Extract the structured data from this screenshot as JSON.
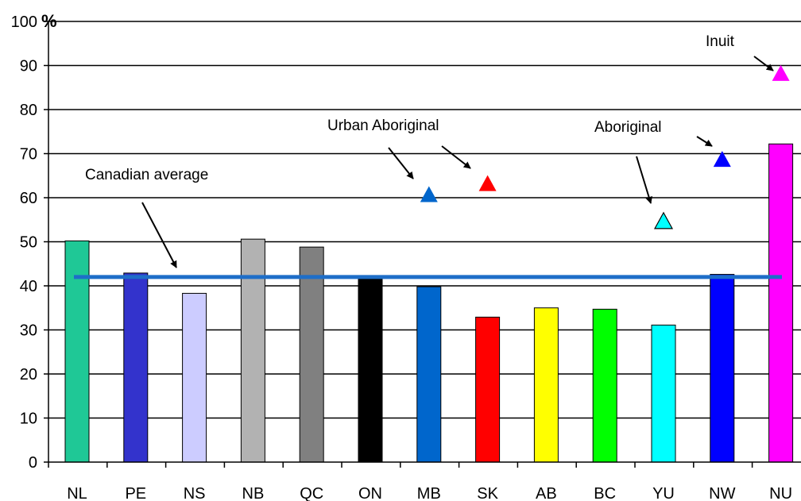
{
  "chart_data": {
    "type": "bar",
    "title": "",
    "xlabel": "",
    "ylabel": "%",
    "ylim": [
      0,
      100
    ],
    "yticks": [
      0,
      10,
      20,
      30,
      40,
      50,
      60,
      70,
      80,
      90,
      100
    ],
    "grid": true,
    "categories": [
      "NL",
      "PE",
      "NS",
      "NB",
      "QC",
      "ON",
      "MB",
      "SK",
      "AB",
      "BC",
      "YU",
      "NW",
      "NU"
    ],
    "series": [
      {
        "values": [
          50.2,
          42.9,
          38.3,
          50.6,
          48.8,
          42.1,
          39.8,
          32.9,
          35.0,
          34.7,
          31.1,
          42.6,
          72.2
        ],
        "colors": [
          "#1fc896",
          "#3333cc",
          "#ccccff",
          "#b2b2b2",
          "#808080",
          "#000000",
          "#0066cc",
          "#ff0000",
          "#ffff00",
          "#00ff00",
          "#00ffff",
          "#0000ff",
          "#ff00ff"
        ]
      }
    ],
    "reference_line": {
      "label": "Canadian average",
      "value": 42,
      "color": "#1e6ec8"
    },
    "markers": [
      {
        "category": "MB",
        "value": 60.8,
        "color": "#0066cc"
      },
      {
        "category": "SK",
        "value": 63.3,
        "color": "#ff0000"
      },
      {
        "category": "YU",
        "value": 54.8,
        "color": "#00ffff"
      },
      {
        "category": "NW",
        "value": 68.8,
        "color": "#0000ff"
      },
      {
        "category": "NU",
        "value": 88.3,
        "color": "#ff00ff"
      }
    ],
    "annotations": [
      {
        "text": "Canadian average"
      },
      {
        "text": "Urban Aboriginal"
      },
      {
        "text": "Aboriginal"
      },
      {
        "text": "Inuit"
      }
    ]
  }
}
